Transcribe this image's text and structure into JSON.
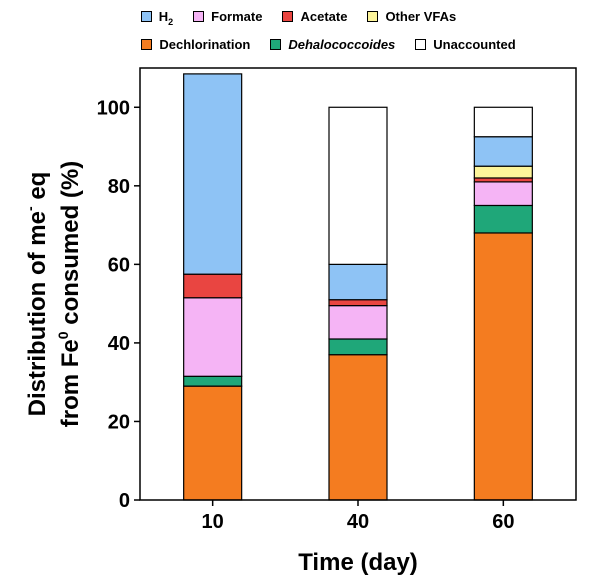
{
  "chart_data": {
    "type": "bar",
    "stacked": true,
    "categories": [
      "10",
      "40",
      "60"
    ],
    "xlabel": "Time (day)",
    "ylabel": {
      "line1": "Distribution of me",
      "line1_sup": "-",
      "line1_tail": " eq",
      "line2": "from Fe",
      "line2_sup": "0",
      "line2_tail": " consumed (%)"
    },
    "ylim": [
      0,
      110
    ],
    "yticks": [
      "0",
      "20",
      "40",
      "60",
      "80",
      "100"
    ],
    "grid": false,
    "legend_position": "top",
    "series": [
      {
        "name": "Dechlorination",
        "color": "#F47C20",
        "values": [
          29,
          37,
          68
        ]
      },
      {
        "name": "Dehalococcoides",
        "color": "#1FA779",
        "values": [
          2.5,
          4,
          7
        ]
      },
      {
        "name": "Formate",
        "color": "#F5B4F5",
        "values": [
          20,
          8.5,
          6
        ]
      },
      {
        "name": "Acetate",
        "color": "#E94541",
        "values": [
          6,
          1.5,
          1
        ]
      },
      {
        "name": "Other VFAs",
        "color": "#FCF49A",
        "values": [
          0,
          0,
          3
        ]
      },
      {
        "name": "H2",
        "color": "#8EC3F5",
        "values": [
          51,
          9,
          7.5
        ]
      },
      {
        "name": "Unaccounted",
        "color": "#FFFFFF",
        "values": [
          0,
          40,
          7.5
        ]
      }
    ]
  },
  "legend": {
    "row1": [
      {
        "label": "H",
        "sub": "2",
        "color": "#8EC3F5"
      },
      {
        "label": "Formate",
        "color": "#F5B4F5"
      },
      {
        "label": "Acetate",
        "color": "#E94541"
      },
      {
        "label": "Other VFAs",
        "color": "#FCF49A"
      }
    ],
    "row2": [
      {
        "label": "Dechlorination",
        "color": "#F47C20"
      },
      {
        "label": "Dehalococcoides",
        "color": "#1FA779",
        "italic": true
      },
      {
        "label": "Unaccounted",
        "color": "#FFFFFF"
      }
    ]
  }
}
